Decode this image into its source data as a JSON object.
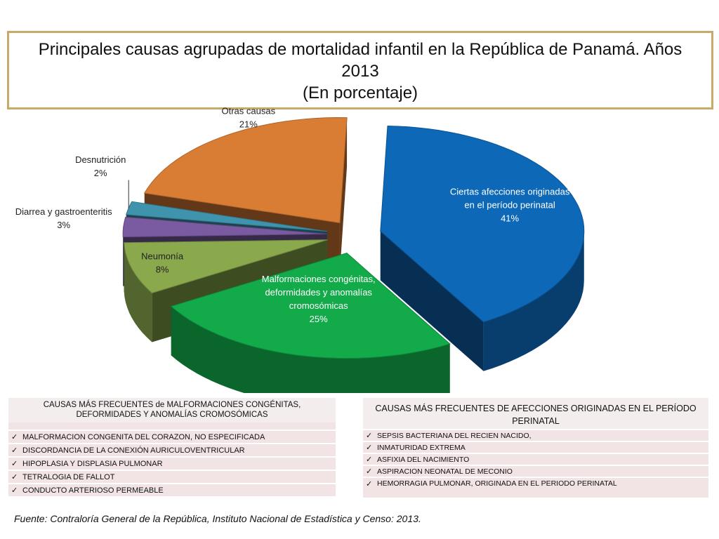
{
  "title": {
    "line1": "Principales causas agrupadas de mortalidad infantil en la República de Panamá.  Años",
    "line2": "2013",
    "line3": "(En porcentaje)"
  },
  "chart_data": {
    "type": "pie",
    "style": "3d-exploded",
    "unit": "%",
    "slices": [
      {
        "label": "Ciertas afecciones originadas en el período perinatal",
        "label_lines": [
          "Ciertas afecciones originadas",
          "en el período perinatal"
        ],
        "value": 41,
        "value_label": "41%",
        "color": "#0d68b8"
      },
      {
        "label": "Malformaciones congénitas, deformidades y anomalías cromosómicas",
        "label_lines": [
          "Malformaciones congénitas,",
          "deformidades y anomalías",
          "cromosómicas"
        ],
        "value": 25,
        "value_label": "25%",
        "color": "#13aa4a"
      },
      {
        "label": "Neumonía",
        "label_lines": [
          "Neumonía"
        ],
        "value": 8,
        "value_label": "8%",
        "color": "#8aa84c"
      },
      {
        "label": "Diarrea y gastroenteritis",
        "label_lines": [
          "Diarrea y gastroenteritis"
        ],
        "value": 3,
        "value_label": "3%",
        "color": "#7a5aa0"
      },
      {
        "label": "Desnutrición",
        "label_lines": [
          "Desnutrición"
        ],
        "value": 2,
        "value_label": "2%",
        "color": "#3f93ad"
      },
      {
        "label": "Otras causas",
        "label_lines": [
          "Otras  causas"
        ],
        "value": 21,
        "value_label": "21%",
        "color": "#d97d35"
      }
    ]
  },
  "tables": {
    "malformaciones": {
      "header": [
        "CAUSAS MÁS FRECUENTES de MALFORMACIONES CONGÉNITAS,",
        "DEFORMIDADES Y ANOMALÍAS CROMOSÓMICAS"
      ],
      "items": [
        "MALFORMACION CONGENITA DEL CORAZON, NO ESPECIFICADA",
        "DISCORDANCIA DE LA CONEXIÓN AURICULOVENTRICULAR",
        "HIPOPLASIA Y DISPLASIA PULMONAR",
        "TETRALOGIA DE FALLOT",
        "CONDUCTO ARTERIOSO PERMEABLE"
      ]
    },
    "perinatal": {
      "header": [
        "CAUSAS MÁS FRECUENTES DE AFECCIONES ORIGINADAS EN EL PERÍODO",
        "PERINATAL"
      ],
      "items": [
        "SEPSIS BACTERIANA DEL RECIEN NACIDO,",
        "INMATURIDAD EXTREMA",
        "ASFIXIA DEL NACIMIENTO",
        "ASPIRACION NEONATAL DE MECONIO",
        "HEMORRAGIA PULMONAR, ORIGINADA EN EL PERIODO PERINATAL"
      ]
    }
  },
  "source": "Fuente: Contraloría General de la República, Instituto Nacional de Estadística y Censo: 2013."
}
